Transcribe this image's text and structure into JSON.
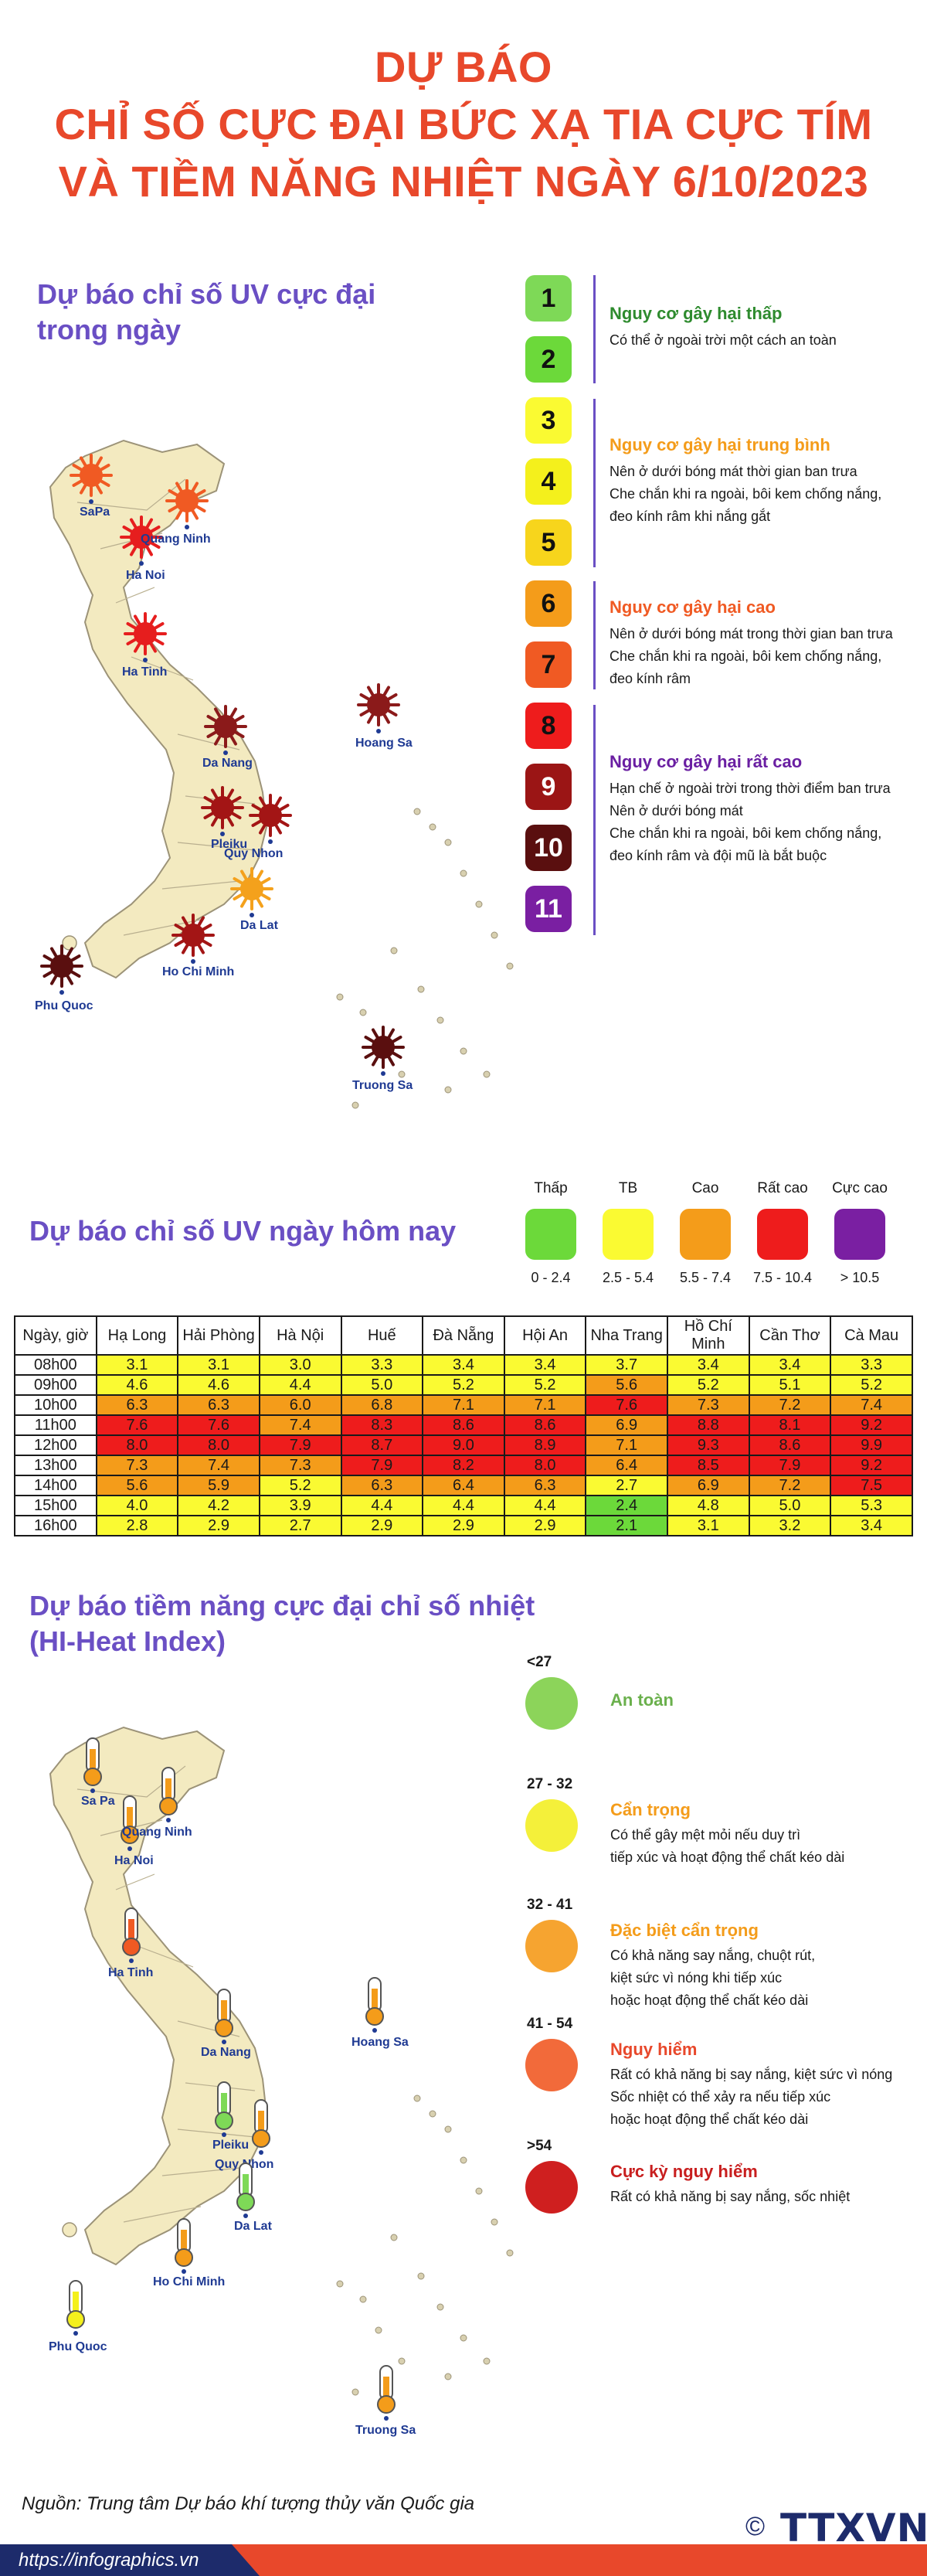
{
  "title": {
    "line1": "DỰ BÁO",
    "line2": "CHỈ SỐ CỰC ĐẠI BỨC XẠ TIA CỰC TÍM",
    "line3": "VÀ TIỀM NĂNG NHIỆT NGÀY 6/10/2023"
  },
  "uv_max": {
    "section_title_1": "Dự báo chỉ số UV cực đại",
    "section_title_2": "trong ngày",
    "cities": [
      {
        "name": "SaPa",
        "color": "#f05a23"
      },
      {
        "name": "Ha Noi",
        "color": "#e61e1e"
      },
      {
        "name": "Quang Ninh",
        "color": "#f05a23"
      },
      {
        "name": "Ha Tinh",
        "color": "#e61e1e"
      },
      {
        "name": "Da Nang",
        "color": "#8b1a1a"
      },
      {
        "name": "Hoang Sa",
        "color": "#8b1a1a"
      },
      {
        "name": "Pleiku",
        "color": "#a31515"
      },
      {
        "name": "Quy Nhon",
        "color": "#a31515"
      },
      {
        "name": "Da Lat",
        "color": "#f4a11c"
      },
      {
        "name": "Ho Chi Minh",
        "color": "#a31515"
      },
      {
        "name": "Phu Quoc",
        "color": "#5a0f0f"
      },
      {
        "name": "Truong Sa",
        "color": "#5a0f0f"
      }
    ],
    "scale": [
      {
        "value": "1",
        "color": "#7ed957"
      },
      {
        "value": "2",
        "color": "#6cd93a"
      },
      {
        "value": "3",
        "color": "#fafa32"
      },
      {
        "value": "4",
        "color": "#f4f01c"
      },
      {
        "value": "5",
        "color": "#f7d51c"
      },
      {
        "value": "6",
        "color": "#f49c1a"
      },
      {
        "value": "7",
        "color": "#f05a23"
      },
      {
        "value": "8",
        "color": "#ee1c1c"
      },
      {
        "value": "9",
        "color": "#9b1515"
      },
      {
        "value": "10",
        "color": "#5a0f0f"
      },
      {
        "value": "11",
        "color": "#7a1fa2"
      }
    ],
    "risks": [
      {
        "title": "Nguy cơ gây hại thấp",
        "color": "#2e8b2e",
        "lines": [
          "Có thể ở ngoài trời một cách an toàn"
        ]
      },
      {
        "title": "Nguy cơ gây hại trung bình",
        "color": "#f49c1a",
        "lines": [
          "Nên ở dưới bóng mát thời gian ban trưa",
          "Che chắn khi ra ngoài, bôi kem chống nắng,",
          "đeo kính râm khi nắng gắt"
        ]
      },
      {
        "title": "Nguy cơ gây hại cao",
        "color": "#f05a23",
        "lines": [
          "Nên ở dưới bóng mát trong thời gian ban trưa",
          "Che chắn khi ra ngoài, bôi kem chống nắng,",
          "đeo kính râm"
        ]
      },
      {
        "title": "Nguy cơ gây hại rất cao",
        "color": "#6a1fa2",
        "lines": [
          "Hạn chế ở ngoài trời trong thời điểm ban trưa",
          "Nên ở dưới bóng mát",
          "Che chắn khi ra ngoài, bôi kem chống nắng,",
          "đeo kính râm và đội mũ là bắt buộc"
        ]
      }
    ]
  },
  "uv_today": {
    "section_title": "Dự báo chỉ số UV ngày hôm nay",
    "levels": [
      {
        "name": "Thấp",
        "range": "0 - 2.4",
        "color": "#6cd93a"
      },
      {
        "name": "TB",
        "range": "2.5 - 5.4",
        "color": "#fafa32"
      },
      {
        "name": "Cao",
        "range": "5.5 - 7.4",
        "color": "#f49c1a"
      },
      {
        "name": "Rất cao",
        "range": "7.5 - 10.4",
        "color": "#ee1c1c"
      },
      {
        "name": "Cực cao",
        "range": "> 10.5",
        "color": "#7a1fa2"
      }
    ],
    "table": {
      "headers": [
        "Ngày, giờ",
        "Hạ Long",
        "Hải Phòng",
        "Hà Nội",
        "Huế",
        "Đà Nẵng",
        "Hội An",
        "Nha Trang",
        "Hồ Chí Minh",
        "Cần Thơ",
        "Cà Mau"
      ],
      "rows": [
        {
          "time": "08h00",
          "values": [
            "3.1",
            "3.1",
            "3.0",
            "3.3",
            "3.4",
            "3.4",
            "3.7",
            "3.4",
            "3.4",
            "3.3"
          ],
          "levels": [
            "y",
            "y",
            "y",
            "y",
            "y",
            "y",
            "y",
            "y",
            "y",
            "y"
          ]
        },
        {
          "time": "09h00",
          "values": [
            "4.6",
            "4.6",
            "4.4",
            "5.0",
            "5.2",
            "5.2",
            "5.6",
            "5.2",
            "5.1",
            "5.2"
          ],
          "levels": [
            "y",
            "y",
            "y",
            "y",
            "y",
            "y",
            "o",
            "y",
            "y",
            "y"
          ]
        },
        {
          "time": "10h00",
          "values": [
            "6.3",
            "6.3",
            "6.0",
            "6.8",
            "7.1",
            "7.1",
            "7.6",
            "7.3",
            "7.2",
            "7.4"
          ],
          "levels": [
            "o",
            "o",
            "o",
            "o",
            "o",
            "o",
            "r",
            "o",
            "o",
            "o"
          ]
        },
        {
          "time": "11h00",
          "values": [
            "7.6",
            "7.6",
            "7.4",
            "8.3",
            "8.6",
            "8.6",
            "6.9",
            "8.8",
            "8.1",
            "9.2"
          ],
          "levels": [
            "r",
            "r",
            "o",
            "r",
            "r",
            "r",
            "o",
            "r",
            "r",
            "r"
          ]
        },
        {
          "time": "12h00",
          "values": [
            "8.0",
            "8.0",
            "7.9",
            "8.7",
            "9.0",
            "8.9",
            "7.1",
            "9.3",
            "8.6",
            "9.9"
          ],
          "levels": [
            "r",
            "r",
            "r",
            "r",
            "r",
            "r",
            "o",
            "r",
            "r",
            "r"
          ]
        },
        {
          "time": "13h00",
          "values": [
            "7.3",
            "7.4",
            "7.3",
            "7.9",
            "8.2",
            "8.0",
            "6.4",
            "8.5",
            "7.9",
            "9.2"
          ],
          "levels": [
            "o",
            "o",
            "o",
            "r",
            "r",
            "r",
            "o",
            "r",
            "r",
            "r"
          ]
        },
        {
          "time": "14h00",
          "values": [
            "5.6",
            "5.9",
            "5.2",
            "6.3",
            "6.4",
            "6.3",
            "2.7",
            "6.9",
            "7.2",
            "7.5"
          ],
          "levels": [
            "o",
            "o",
            "y",
            "o",
            "o",
            "o",
            "y",
            "o",
            "o",
            "r"
          ]
        },
        {
          "time": "15h00",
          "values": [
            "4.0",
            "4.2",
            "3.9",
            "4.4",
            "4.4",
            "4.4",
            "2.4",
            "4.8",
            "5.0",
            "5.3"
          ],
          "levels": [
            "y",
            "y",
            "y",
            "y",
            "y",
            "y",
            "g",
            "y",
            "y",
            "y"
          ]
        },
        {
          "time": "16h00",
          "values": [
            "2.8",
            "2.9",
            "2.7",
            "2.9",
            "2.9",
            "2.9",
            "2.1",
            "3.1",
            "3.2",
            "3.4"
          ],
          "levels": [
            "y",
            "y",
            "y",
            "y",
            "y",
            "y",
            "g",
            "y",
            "y",
            "y"
          ]
        }
      ]
    }
  },
  "heat": {
    "section_title_1": "Dự báo tiềm năng cực đại chỉ số nhiệt",
    "section_title_2": "(HI-Heat Index)",
    "cities": [
      {
        "name": "Sa Pa",
        "color": "#f49c1a"
      },
      {
        "name": "Ha Noi",
        "color": "#f49c1a"
      },
      {
        "name": "Quang Ninh",
        "color": "#f49c1a"
      },
      {
        "name": "Ha Tinh",
        "color": "#f05a23"
      },
      {
        "name": "Da Nang",
        "color": "#f49c1a"
      },
      {
        "name": "Hoang Sa",
        "color": "#f49c1a"
      },
      {
        "name": "Pleiku",
        "color": "#7ed957"
      },
      {
        "name": "Quy Nhon",
        "color": "#f49c1a"
      },
      {
        "name": "Da Lat",
        "color": "#7ed957"
      },
      {
        "name": "Ho Chi Minh",
        "color": "#f49c1a"
      },
      {
        "name": "Phu Quoc",
        "color": "#f4f01c"
      },
      {
        "name": "Truong Sa",
        "color": "#f49c1a"
      }
    ],
    "levels": [
      {
        "range": "<27",
        "title": "An toàn",
        "title_color": "#6ab04c",
        "color": "#8cd45a",
        "lines": []
      },
      {
        "range": "27 - 32",
        "title": "Cẩn trọng",
        "title_color": "#f49c1a",
        "color": "#f4f03a",
        "lines": [
          "Có thể gây mệt mỏi nếu duy trì",
          "tiếp xúc và hoạt động thể chất kéo dài"
        ]
      },
      {
        "range": "32 - 41",
        "title": "Đặc biệt cẩn trọng",
        "title_color": "#f49c1a",
        "color": "#f6a430",
        "lines": [
          "Có khả năng say nắng, chuột rút,",
          "kiệt sức vì nóng khi tiếp xúc",
          "hoặc hoạt động thể chất kéo dài"
        ]
      },
      {
        "range": "41 - 54",
        "title": "Nguy hiểm",
        "title_color": "#e8482b",
        "color": "#f26a3a",
        "lines": [
          "Rất có khả năng bị say nắng, kiệt sức vì nóng",
          "Sốc nhiệt có thể xảy ra nếu tiếp xúc",
          "hoặc hoạt động thể chất kéo dài"
        ]
      },
      {
        "range": ">54",
        "title": "Cực kỳ nguy hiểm",
        "title_color": "#c81e1e",
        "color": "#cf1f1f",
        "lines": [
          "Rất có khả năng bị say nắng, sốc nhiệt"
        ]
      }
    ]
  },
  "footer": {
    "source": "Nguồn: Trung tâm Dự báo khí tượng thủy văn Quốc gia",
    "url": "https://infographics.vn",
    "copyright": "©",
    "logo": "TTXVN"
  }
}
